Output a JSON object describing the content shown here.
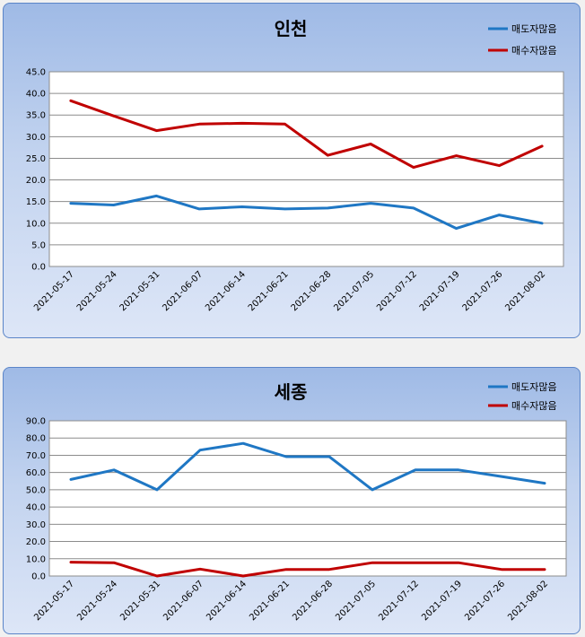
{
  "chart_data": [
    {
      "type": "line",
      "title": "인천",
      "categories": [
        "2021-05-17",
        "2021-05-24",
        "2021-05-31",
        "2021-06-07",
        "2021-06-14",
        "2021-06-21",
        "2021-06-28",
        "2021-07-05",
        "2021-07-12",
        "2021-07-19",
        "2021-07-26",
        "2021-08-02"
      ],
      "series": [
        {
          "name": "매도자많음",
          "color": "#1f77c4",
          "values": [
            14.6,
            14.2,
            16.3,
            13.3,
            13.8,
            13.3,
            13.5,
            14.6,
            13.5,
            8.8,
            11.9,
            10.0
          ]
        },
        {
          "name": "매수자많음",
          "color": "#c00000",
          "values": [
            38.3,
            34.8,
            31.4,
            32.9,
            33.1,
            32.9,
            25.7,
            28.3,
            22.9,
            25.6,
            23.3,
            27.8
          ]
        }
      ],
      "ylim": [
        0,
        45
      ],
      "yticks": [
        "0.0",
        "5.0",
        "10.0",
        "15.0",
        "20.0",
        "25.0",
        "30.0",
        "35.0",
        "40.0",
        "45.0"
      ],
      "legend": "top-right",
      "grid": true
    },
    {
      "type": "line",
      "title": "세종",
      "categories": [
        "2021-05-17",
        "2021-05-24",
        "2021-05-31",
        "2021-06-07",
        "2021-06-14",
        "2021-06-21",
        "2021-06-28",
        "2021-07-05",
        "2021-07-12",
        "2021-07-19",
        "2021-07-26",
        "2021-08-02"
      ],
      "series": [
        {
          "name": "매도자많음",
          "color": "#1f77c4",
          "values": [
            56.0,
            61.5,
            50.0,
            73.0,
            76.9,
            69.2,
            69.2,
            50.0,
            61.5,
            61.5,
            57.7,
            53.8
          ]
        },
        {
          "name": "매수자많음",
          "color": "#c00000",
          "values": [
            8.0,
            7.7,
            0.0,
            4.0,
            0.0,
            3.8,
            3.8,
            7.7,
            7.7,
            7.7,
            3.8,
            3.8
          ]
        }
      ],
      "ylim": [
        0,
        90
      ],
      "yticks": [
        "0.0",
        "10.0",
        "20.0",
        "30.0",
        "40.0",
        "50.0",
        "60.0",
        "70.0",
        "80.0",
        "90.0"
      ],
      "legend": "top-right",
      "grid": true
    }
  ]
}
